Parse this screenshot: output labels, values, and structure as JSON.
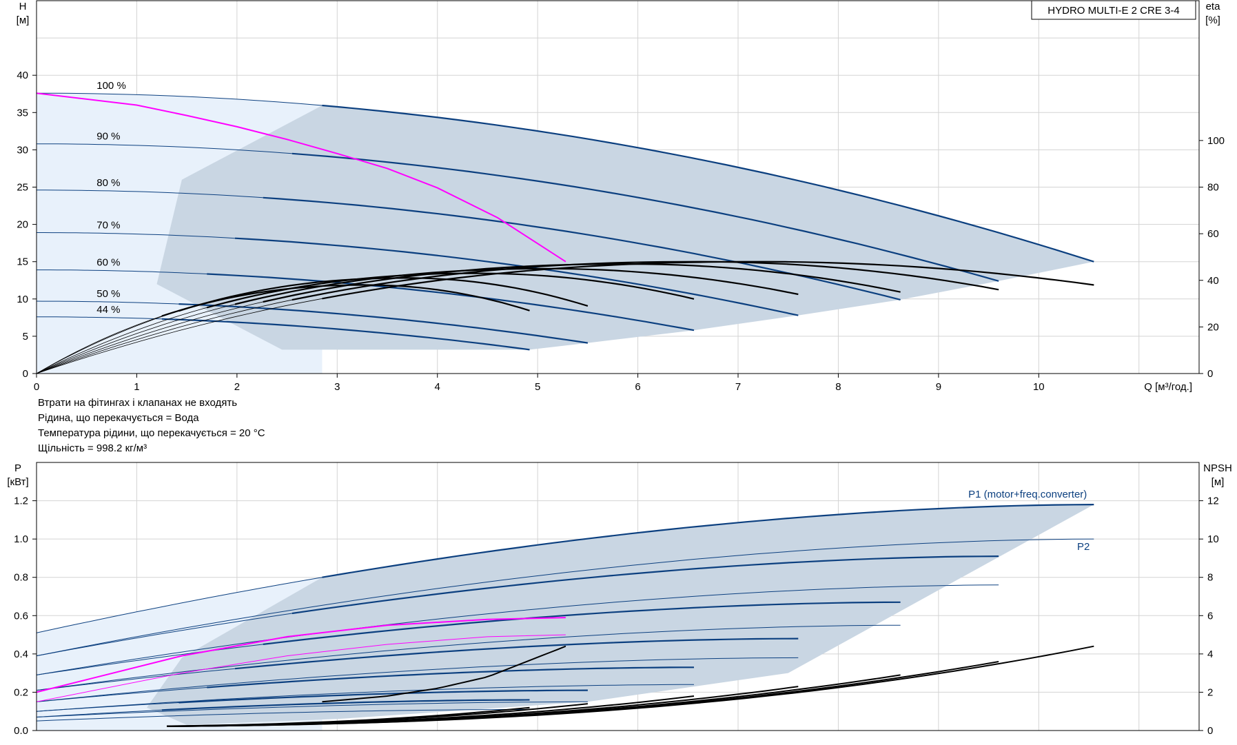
{
  "title_box": "HYDRO MULTI-E 2 CRE 3-4",
  "notes": [
    "Втрати на фітингах і клапанах не входять",
    "Рідина, що перекачується = Вода",
    "Температура рідини, що перекачується = 20 °C",
    "Щільність = 998.2 кг/м³"
  ],
  "colors": {
    "curve": "#0b3f7f",
    "duty": "#ff00ff",
    "eta": "#000000",
    "fill_main": "#c9d6e3",
    "fill_light": "#e8f1fb",
    "grid": "#d3d3d3"
  },
  "chart_data": [
    {
      "type": "line",
      "name": "head-efficiency",
      "xlabel": "Q [м³/год.]",
      "ylabel_left": "H\n[м]",
      "ylabel_right": "eta\n[%]",
      "xlim": [
        0,
        11.6
      ],
      "ylim_left": [
        0,
        50
      ],
      "ylim_right": [
        0,
        160
      ],
      "xticks": [
        0,
        1,
        2,
        3,
        4,
        5,
        6,
        7,
        8,
        9,
        10
      ],
      "yticks_left": [
        0,
        5,
        10,
        15,
        20,
        25,
        30,
        35,
        40
      ],
      "yticks_right": [
        0,
        20,
        40,
        60,
        80,
        100
      ],
      "grid": true,
      "speed_curves": [
        {
          "label": "100 %",
          "h0": 37.6,
          "qmax": 10.55,
          "hend": 15.0,
          "q_op": 2.85
        },
        {
          "label": "90 %",
          "h0": 30.8,
          "qmax": 9.6,
          "hend": 12.4,
          "q_op": 2.55
        },
        {
          "label": "80 %",
          "h0": 24.6,
          "qmax": 8.62,
          "hend": 9.9,
          "q_op": 2.26
        },
        {
          "label": "70 %",
          "h0": 18.9,
          "qmax": 7.6,
          "hend": 7.8,
          "q_op": 1.98
        },
        {
          "label": "60 %",
          "h0": 13.9,
          "qmax": 6.56,
          "hend": 5.8,
          "q_op": 1.7
        },
        {
          "label": "50 %",
          "h0": 9.7,
          "qmax": 5.5,
          "hend": 4.1,
          "q_op": 1.42
        },
        {
          "label": "44 %",
          "h0": 7.6,
          "qmax": 4.92,
          "hend": 3.2,
          "q_op": 1.25
        }
      ],
      "system_curve": {
        "x": [
          0,
          1.0,
          1.5,
          2.0,
          2.5,
          3.0,
          3.5,
          4.0,
          4.6,
          5.28
        ],
        "y": [
          37.6,
          36.0,
          34.6,
          33.1,
          31.4,
          29.5,
          27.5,
          24.9,
          20.9,
          15.0
        ]
      },
      "efficiency_curves": [
        {
          "qmax": 10.55,
          "eta_peak": 48,
          "q_peak": 7.2,
          "eta_end": 38
        },
        {
          "qmax": 9.6,
          "eta_peak": 48,
          "q_peak": 6.6,
          "eta_end": 36
        },
        {
          "qmax": 8.62,
          "eta_peak": 47,
          "q_peak": 5.9,
          "eta_end": 35
        },
        {
          "qmax": 7.6,
          "eta_peak": 45,
          "q_peak": 5.1,
          "eta_end": 34
        },
        {
          "qmax": 6.56,
          "eta_peak": 43,
          "q_peak": 4.4,
          "eta_end": 32
        },
        {
          "qmax": 5.5,
          "eta_peak": 41,
          "q_peak": 3.7,
          "eta_end": 29
        },
        {
          "qmax": 4.92,
          "eta_peak": 38,
          "q_peak": 3.3,
          "eta_end": 27
        }
      ]
    },
    {
      "type": "line",
      "name": "power-npsh",
      "xlabel": "",
      "ylabel_left": "P\n[кВт]",
      "ylabel_right": "NPSH\n[м]",
      "xlim": [
        0,
        11.6
      ],
      "ylim_left": [
        0,
        1.4
      ],
      "ylim_right": [
        0,
        14
      ],
      "yticks_left": [
        0.0,
        0.2,
        0.4,
        0.6,
        0.8,
        1.0,
        1.2
      ],
      "yticks_right": [
        0,
        2,
        4,
        6,
        8,
        10,
        12
      ],
      "series_labels": [
        "P1 (motor+freq.converter)",
        "P2"
      ],
      "p1_curves": [
        {
          "qmax": 10.55,
          "p0": 0.51,
          "pend": 1.18
        },
        {
          "qmax": 9.6,
          "p0": 0.39,
          "pend": 0.91
        },
        {
          "qmax": 8.62,
          "p0": 0.29,
          "pend": 0.67
        },
        {
          "qmax": 7.6,
          "p0": 0.21,
          "pend": 0.48
        },
        {
          "qmax": 6.56,
          "p0": 0.15,
          "pend": 0.33
        },
        {
          "qmax": 5.5,
          "p0": 0.1,
          "pend": 0.21
        },
        {
          "qmax": 4.92,
          "p0": 0.07,
          "pend": 0.16
        }
      ],
      "p2_curves": [
        {
          "qmax": 10.55,
          "p0": 0.39,
          "pend": 1.0
        },
        {
          "qmax": 9.6,
          "p0": 0.29,
          "pend": 0.76
        },
        {
          "qmax": 8.62,
          "p0": 0.21,
          "pend": 0.55
        },
        {
          "qmax": 7.6,
          "p0": 0.15,
          "pend": 0.38
        },
        {
          "qmax": 6.56,
          "p0": 0.1,
          "pend": 0.24
        },
        {
          "qmax": 5.5,
          "p0": 0.07,
          "pend": 0.15
        },
        {
          "qmax": 4.92,
          "p0": 0.05,
          "pend": 0.11
        }
      ],
      "duty_p1": {
        "x": [
          0,
          1.45,
          2.5,
          3.5,
          4.5,
          5.28
        ],
        "y": [
          0.2,
          0.39,
          0.49,
          0.55,
          0.58,
          0.59
        ]
      },
      "duty_p2": {
        "x": [
          0,
          1.45,
          2.5,
          3.5,
          4.5,
          5.28
        ],
        "y": [
          0.15,
          0.3,
          0.39,
          0.45,
          0.49,
          0.5
        ]
      },
      "npsh_curves": [
        {
          "qmax": 10.55,
          "n0": 0.2,
          "nend": 4.4
        },
        {
          "qmax": 9.6,
          "n0": 0.2,
          "nend": 3.6
        },
        {
          "qmax": 8.62,
          "n0": 0.2,
          "nend": 2.9
        },
        {
          "qmax": 7.6,
          "n0": 0.2,
          "nend": 2.3
        },
        {
          "qmax": 6.56,
          "n0": 0.2,
          "nend": 1.8
        },
        {
          "qmax": 5.5,
          "n0": 0.2,
          "nend": 1.4
        },
        {
          "qmax": 4.92,
          "n0": 0.2,
          "nend": 1.2
        }
      ],
      "npsh_duty": {
        "x": [
          2.85,
          3.5,
          4.0,
          4.5,
          5.28
        ],
        "y": [
          1.5,
          1.8,
          2.2,
          2.8,
          4.4
        ]
      }
    }
  ]
}
